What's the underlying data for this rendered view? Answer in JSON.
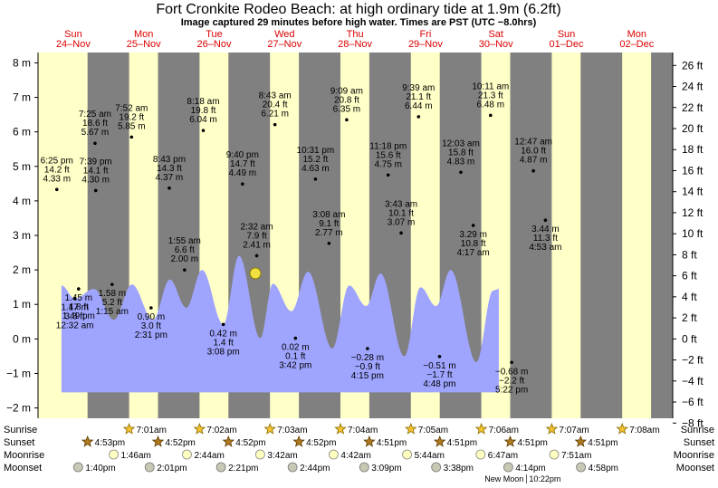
{
  "header": {
    "title": "Fort Cronkite Rodeo Beach: at high  ordinary tide at 1.9m (6.2ft)",
    "subtitle": "Image captured 29 minutes before high water. Times are PST (UTC −8.0hrs)"
  },
  "days": [
    {
      "dow": "Sun",
      "date": "24–Nov"
    },
    {
      "dow": "Mon",
      "date": "25–Nov"
    },
    {
      "dow": "Tue",
      "date": "26–Nov"
    },
    {
      "dow": "Wed",
      "date": "27–Nov"
    },
    {
      "dow": "Thu",
      "date": "28–Nov"
    },
    {
      "dow": "Fri",
      "date": "29–Nov"
    },
    {
      "dow": "Sat",
      "date": "30–Nov"
    },
    {
      "dow": "Sun",
      "date": "01–Dec"
    },
    {
      "dow": "Mon",
      "date": "02–Dec"
    }
  ],
  "chart_data": {
    "type": "area",
    "y_left_unit": "m",
    "y_right_unit": "ft",
    "ylim_m": [
      -2.3,
      8.3
    ],
    "y_left_ticks": [
      "−2 m",
      "−1 m",
      "0 m",
      "1 m",
      "2 m",
      "3 m",
      "4 m",
      "5 m",
      "6 m",
      "7 m",
      "8 m"
    ],
    "y_right_ticks": [
      "−8 ft",
      "−6 ft",
      "−4 ft",
      "−2 ft",
      "0 ft",
      "2 ft",
      "4 ft",
      "6 ft",
      "8 ft",
      "10 ft",
      "12 ft",
      "14 ft",
      "16 ft",
      "18 ft",
      "20 ft",
      "22 ft",
      "24 ft",
      "26 ft"
    ],
    "colors": {
      "day": "#ffffc8",
      "night": "#808080",
      "water": "#9fa5ff",
      "current_marker": "#f0e040"
    },
    "tide_curve_hours": [
      {
        "t": 8.0,
        "m": 1.55
      },
      {
        "t": 12.5,
        "m": 1.17
      },
      {
        "t": 19.1,
        "m": 1.45
      },
      {
        "t": 25.8,
        "m": 0.55
      },
      {
        "t": 32.0,
        "m": 1.58
      },
      {
        "t": 39.15,
        "m": 0.55
      },
      {
        "t": 44.9,
        "m": 1.72
      },
      {
        "t": 50.5,
        "m": 0.9
      },
      {
        "t": 55.9,
        "m": 2.0
      },
      {
        "t": 63.1,
        "m": 0.42
      },
      {
        "t": 68.5,
        "m": 2.41
      },
      {
        "t": 75.7,
        "m": 0.02
      },
      {
        "t": 80.0,
        "m": 1.6
      },
      {
        "t": 86.3,
        "m": 0.8
      },
      {
        "t": 92.0,
        "m": 1.95
      },
      {
        "t": 100.25,
        "m": -0.28
      },
      {
        "t": 106.0,
        "m": 1.55
      },
      {
        "t": 111.8,
        "m": 0.95
      },
      {
        "t": 116.7,
        "m": 1.9
      },
      {
        "t": 124.8,
        "m": -0.51
      },
      {
        "t": 130.3,
        "m": 1.5
      },
      {
        "t": 135.6,
        "m": 0.95
      },
      {
        "t": 140.6,
        "m": 2.0
      },
      {
        "t": 149.35,
        "m": -0.68
      },
      {
        "t": 155.0,
        "m": 1.4
      },
      {
        "t": 157.0,
        "m": 1.45
      }
    ],
    "tide_events": [
      {
        "t": 6.4,
        "m": 4.33,
        "time": "6:25 pm",
        "ft": "14.2 ft",
        "m_text": "4.33 m",
        "pos": "above"
      },
      {
        "t": 12.53,
        "m": 1.17,
        "time": "12:32 am",
        "ft": "3.8 ft",
        "m_text": "1.17 m",
        "pos": "below"
      },
      {
        "t": 19.42,
        "m": 5.67,
        "time": "7:25 am",
        "ft": "18.6 ft",
        "m_text": "5.67 m",
        "pos": "above"
      },
      {
        "t": 13.82,
        "m": 1.45,
        "time": "1:49 pm",
        "ft": "4.8 ft",
        "m_text": "1.45 m",
        "pos": "below"
      },
      {
        "t": 19.65,
        "m": 4.3,
        "time": "7:39 pm",
        "ft": "14.1 ft",
        "m_text": "4.30 m",
        "pos": "above"
      },
      {
        "t": 25.25,
        "m": 1.58,
        "time": "1:15 am",
        "ft": "5.2 ft",
        "m_text": "1.58 m",
        "pos": "below"
      },
      {
        "t": 31.87,
        "m": 5.85,
        "time": "7:52 am",
        "ft": "19.2 ft",
        "m_text": "5.85 m",
        "pos": "above"
      },
      {
        "t": 38.52,
        "m": 0.9,
        "time": "2:31 pm",
        "ft": "3.0 ft",
        "m_text": "0.90 m",
        "pos": "below"
      },
      {
        "t": 44.72,
        "m": 4.37,
        "time": "8:43 pm",
        "ft": "14.3 ft",
        "m_text": "4.37 m",
        "pos": "above"
      },
      {
        "t": 49.92,
        "m": 2.0,
        "time": "1:55 am",
        "ft": "6.6 ft",
        "m_text": "2.00 m",
        "pos": "above"
      },
      {
        "t": 56.3,
        "m": 6.04,
        "time": "8:18 am",
        "ft": "19.8 ft",
        "m_text": "6.04 m",
        "pos": "above"
      },
      {
        "t": 63.13,
        "m": 0.42,
        "time": "3:08 pm",
        "ft": "1.4 ft",
        "m_text": "0.42 m",
        "pos": "below"
      },
      {
        "t": 69.67,
        "m": 4.49,
        "time": "9:40 pm",
        "ft": "14.7 ft",
        "m_text": "4.49 m",
        "pos": "above"
      },
      {
        "t": 74.53,
        "m": 2.41,
        "time": "2:32 am",
        "ft": "7.9 ft",
        "m_text": "2.41 m",
        "pos": "above"
      },
      {
        "t": 80.72,
        "m": 6.21,
        "time": "8:43 am",
        "ft": "20.4 ft",
        "m_text": "6.21 m",
        "pos": "above"
      },
      {
        "t": 87.7,
        "m": 0.02,
        "time": "3:42 pm",
        "ft": "0.1 ft",
        "m_text": "0.02 m",
        "pos": "below"
      },
      {
        "t": 94.52,
        "m": 4.63,
        "time": "10:31 pm",
        "ft": "15.2 ft",
        "m_text": "4.63 m",
        "pos": "above"
      },
      {
        "t": 99.13,
        "m": 2.77,
        "time": "3:08 am",
        "ft": "9.1 ft",
        "m_text": "2.77 m",
        "pos": "above"
      },
      {
        "t": 105.15,
        "m": 6.35,
        "time": "9:09 am",
        "ft": "20.8 ft",
        "m_text": "6.35 m",
        "pos": "above"
      },
      {
        "t": 112.25,
        "m": -0.28,
        "time": "4:15 pm",
        "ft": "−0.9 ft",
        "m_text": "−0.28 m",
        "pos": "below"
      },
      {
        "t": 119.3,
        "m": 4.75,
        "time": "11:18 pm",
        "ft": "15.6 ft",
        "m_text": "4.75 m",
        "pos": "above"
      },
      {
        "t": 123.72,
        "m": 3.07,
        "time": "3:43 am",
        "ft": "10.1 ft",
        "m_text": "3.07 m",
        "pos": "above"
      },
      {
        "t": 129.65,
        "m": 6.44,
        "time": "9:39 am",
        "ft": "21.1 ft",
        "m_text": "6.44 m",
        "pos": "above"
      },
      {
        "t": 136.8,
        "m": -0.51,
        "time": "4:48 pm",
        "ft": "−1.7 ft",
        "m_text": "−0.51 m",
        "pos": "below"
      },
      {
        "t": 144.05,
        "m": 4.83,
        "time": "12:03 am",
        "ft": "15.8 ft",
        "m_text": "4.83 m",
        "pos": "above"
      },
      {
        "t": 148.28,
        "m": 3.29,
        "time": "4:17 am",
        "ft": "10.8 ft",
        "m_text": "3.29 m",
        "pos": "below"
      },
      {
        "t": 154.18,
        "m": 6.48,
        "time": "10:11 am",
        "ft": "21.3 ft",
        "m_text": "6.48 m",
        "pos": "above"
      },
      {
        "t": 161.37,
        "m": -0.68,
        "time": "5:22 pm",
        "ft": "−2.2 ft",
        "m_text": "−0.68 m",
        "pos": "below"
      },
      {
        "t": 168.78,
        "m": 4.87,
        "time": "12:47 am",
        "ft": "16.0 ft",
        "m_text": "4.87 m",
        "pos": "above"
      },
      {
        "t": 172.88,
        "m": 3.44,
        "time": "4:53 am",
        "ft": "11.3 ft",
        "m_text": "3.44 m",
        "pos": "below"
      }
    ],
    "current_marker": {
      "t": 74.05,
      "m": 1.9
    }
  },
  "astro": {
    "row_labels": {
      "sunrise": "Sunrise",
      "sunset": "Sunset",
      "moonrise": "Moonrise",
      "moonset": "Moonset"
    },
    "sunrise": [
      "7:01am",
      "7:02am",
      "7:03am",
      "7:04am",
      "7:05am",
      "7:06am",
      "7:07am",
      "7:08am"
    ],
    "sunset": [
      "4:53pm",
      "4:52pm",
      "4:52pm",
      "4:52pm",
      "4:51pm",
      "4:51pm",
      "4:51pm",
      "4:51pm"
    ],
    "moonrise": [
      "1:46am",
      "2:44am",
      "3:42am",
      "4:42am",
      "5:44am",
      "6:47am",
      "7:51am"
    ],
    "moonset": [
      "1:40pm",
      "2:01pm",
      "2:21pm",
      "2:44pm",
      "3:09pm",
      "3:38pm",
      "4:14pm",
      "4:58pm"
    ],
    "new_moon": "New Moon",
    "new_moon_time": "10:22pm"
  }
}
